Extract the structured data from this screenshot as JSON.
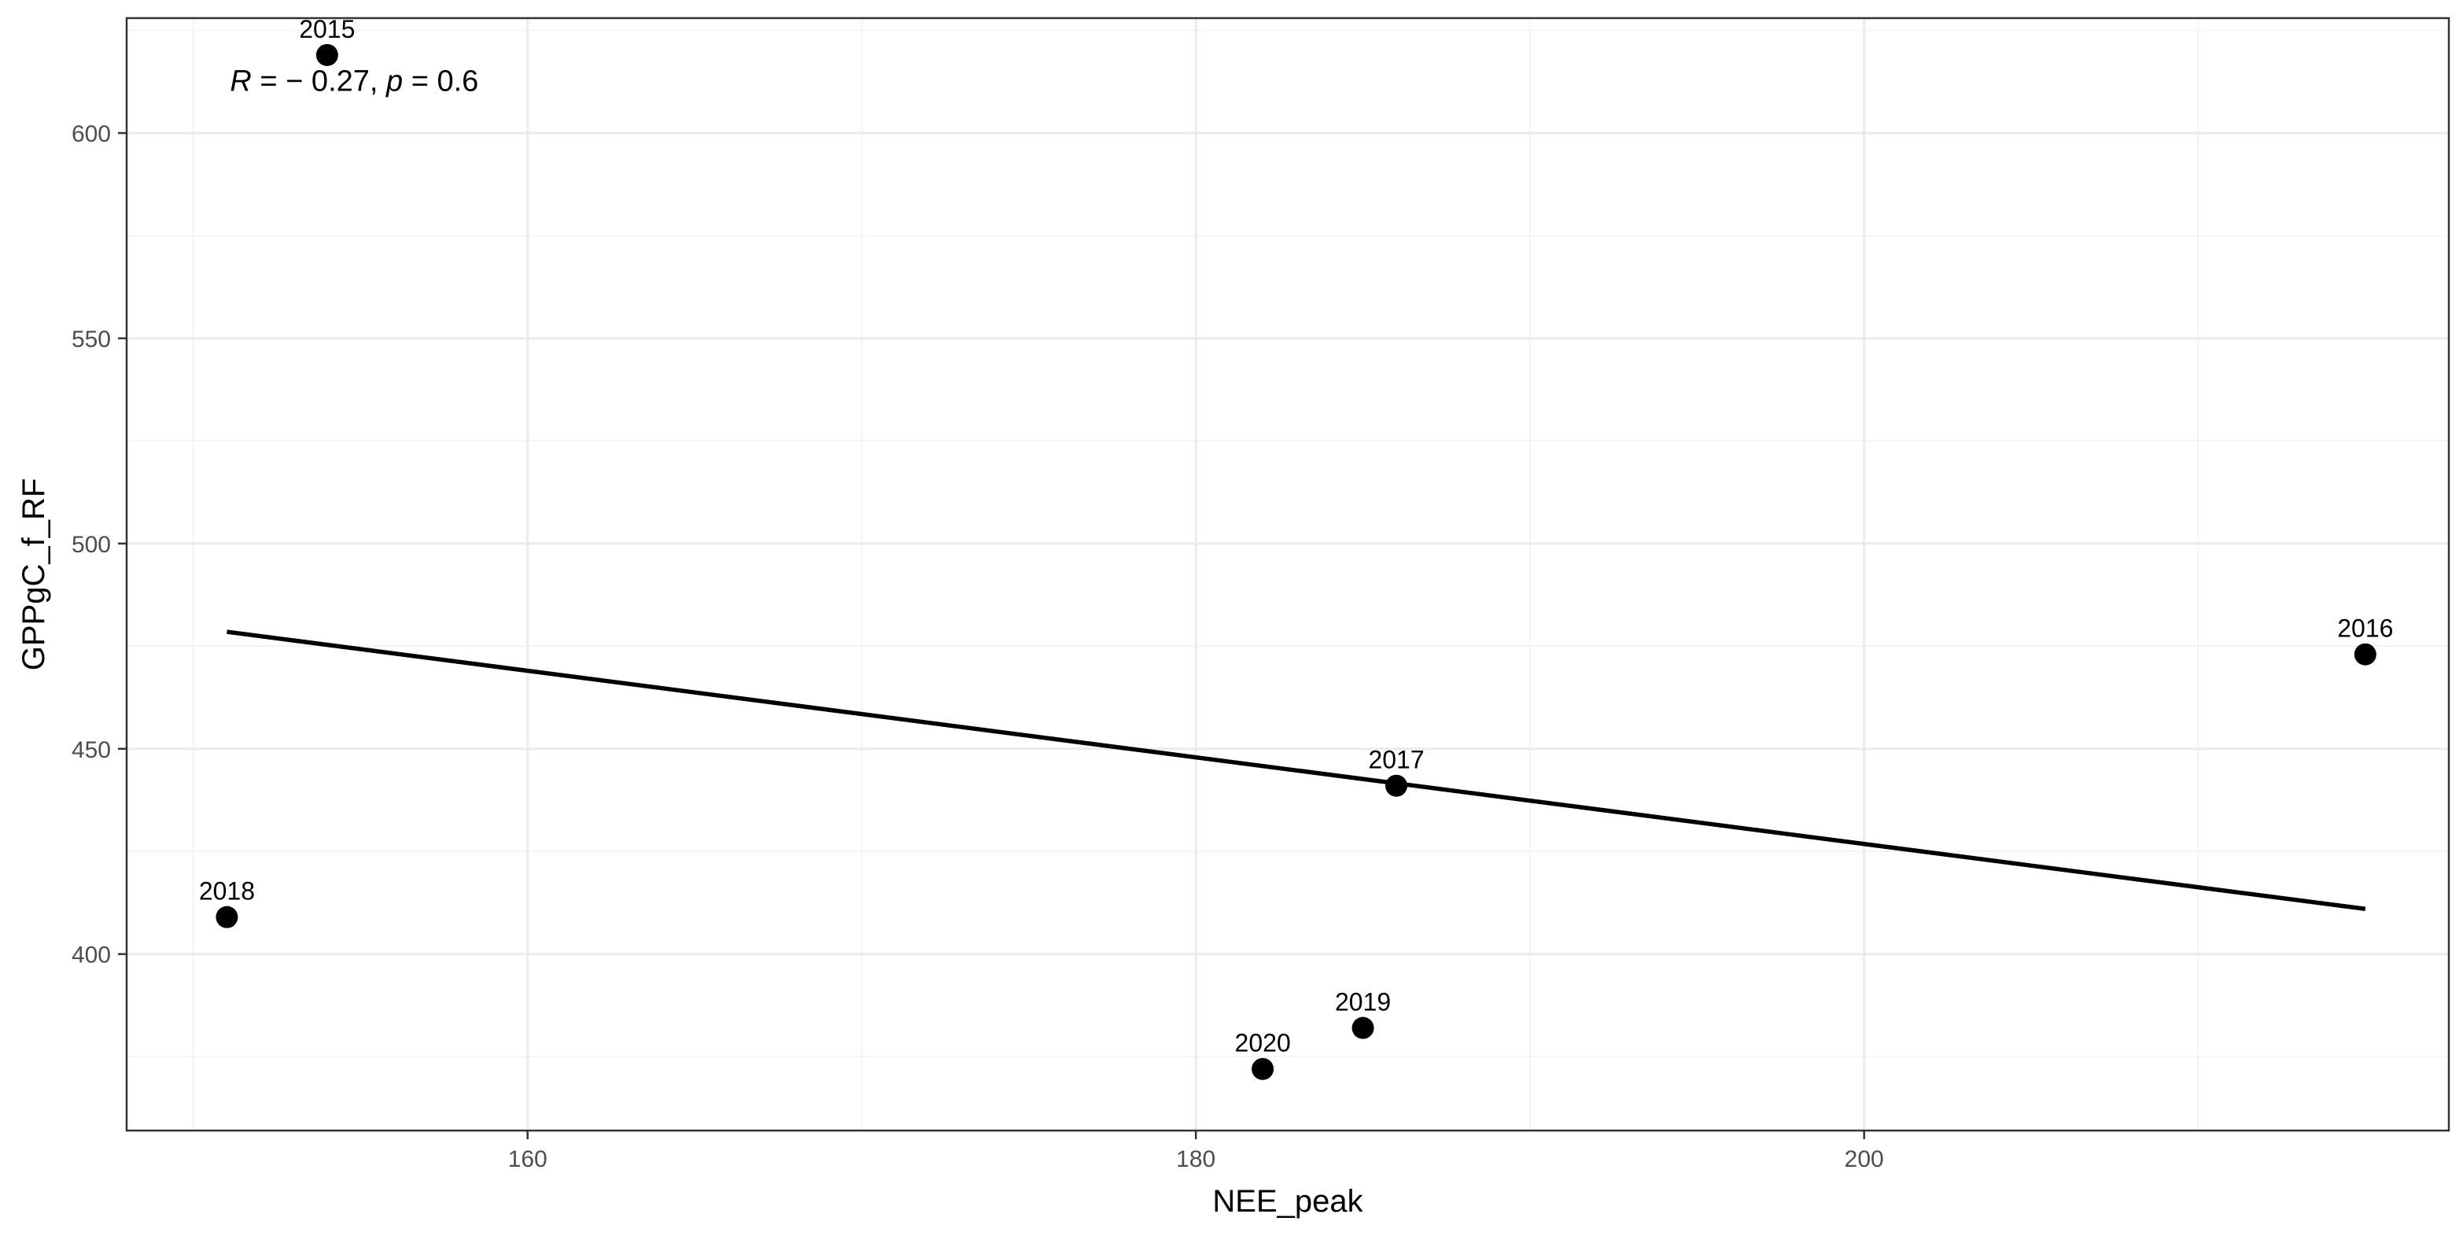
{
  "chart_data": {
    "type": "scatter",
    "xlabel": "NEE_peak",
    "ylabel": "GPPgC_f_RF",
    "xlim": [
      148,
      217.5
    ],
    "ylim": [
      357,
      628
    ],
    "x_ticks": [
      160,
      180,
      200
    ],
    "x_tick_labels": [
      "160",
      "180",
      "200"
    ],
    "y_ticks": [
      400,
      450,
      500,
      550,
      600
    ],
    "y_tick_labels": [
      "400",
      "450",
      "500",
      "550",
      "600"
    ],
    "x_minor_ticks": [
      150,
      170,
      190,
      210
    ],
    "y_minor_ticks": [
      375,
      425,
      475,
      525,
      575,
      625
    ],
    "grid": true,
    "points": [
      {
        "label": "2015",
        "x": 154,
        "y": 619
      },
      {
        "label": "2016",
        "x": 215,
        "y": 473
      },
      {
        "label": "2017",
        "x": 186,
        "y": 441
      },
      {
        "label": "2018",
        "x": 151,
        "y": 409
      },
      {
        "label": "2019",
        "x": 185,
        "y": 382
      },
      {
        "label": "2020",
        "x": 182,
        "y": 372
      }
    ],
    "regression_line": {
      "x": [
        151,
        215
      ],
      "y": [
        478.5,
        411
      ]
    },
    "annotation": {
      "r_symbol": "R",
      "r_text": " = − 0.27, ",
      "p_symbol": "p",
      "p_text": " = 0.6",
      "x": 151,
      "y": 613
    }
  }
}
